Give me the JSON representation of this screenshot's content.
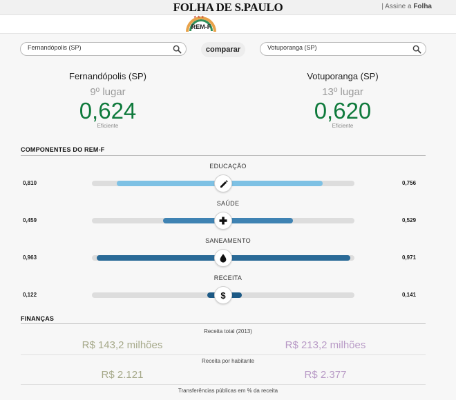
{
  "header": {
    "logo": "FOLHA DE S.PAULO",
    "signin_prefix": "| Assine a ",
    "signin_brand": "Folha"
  },
  "badge": {
    "label": "REM-F"
  },
  "search": {
    "left_value": "Fernandópolis (SP)",
    "right_value": "Votuporanga (SP)",
    "compare_label": "comparar"
  },
  "cities": {
    "left": {
      "name": "Fernandópolis (SP)",
      "rank": "9º lugar",
      "score": "0,624",
      "rating": "Eficiente"
    },
    "right": {
      "name": "Votuporanga (SP)",
      "rank": "13º lugar",
      "score": "0,620",
      "rating": "Eficiente"
    }
  },
  "components_section": {
    "title": "COMPONENTES DO REM-F",
    "items": [
      {
        "label": "EDUCAÇÃO",
        "left": "0,810",
        "right": "0,756",
        "left_num": 0.81,
        "right_num": 0.756,
        "color": "#7ec1e4",
        "icon": "pencil-icon"
      },
      {
        "label": "SAÚDE",
        "left": "0,459",
        "right": "0,529",
        "left_num": 0.459,
        "right_num": 0.529,
        "color": "#3f83b3",
        "icon": "plus-icon"
      },
      {
        "label": "SANEAMENTO",
        "left": "0,963",
        "right": "0,971",
        "left_num": 0.963,
        "right_num": 0.971,
        "color": "#2a6a97",
        "icon": "drop-icon"
      },
      {
        "label": "RECEITA",
        "left": "0,122",
        "right": "0,141",
        "left_num": 0.122,
        "right_num": 0.141,
        "color": "#1d5a86",
        "icon": "dollar-icon"
      }
    ]
  },
  "finance_section": {
    "title": "FINANÇAS",
    "rows": [
      {
        "caption": "Receita total (2013)",
        "left": "R$ 143,2 milhões",
        "right": "R$ 213,2 milhões"
      },
      {
        "caption": "Receita por habitante",
        "left": "R$ 2.121",
        "right": "R$ 2.377"
      },
      {
        "caption": "Transferências públicas em % da receita"
      }
    ]
  },
  "colors": {
    "score": "#0f7a3c",
    "left_city": "#a6a98a",
    "right_city": "#b89ac6"
  }
}
